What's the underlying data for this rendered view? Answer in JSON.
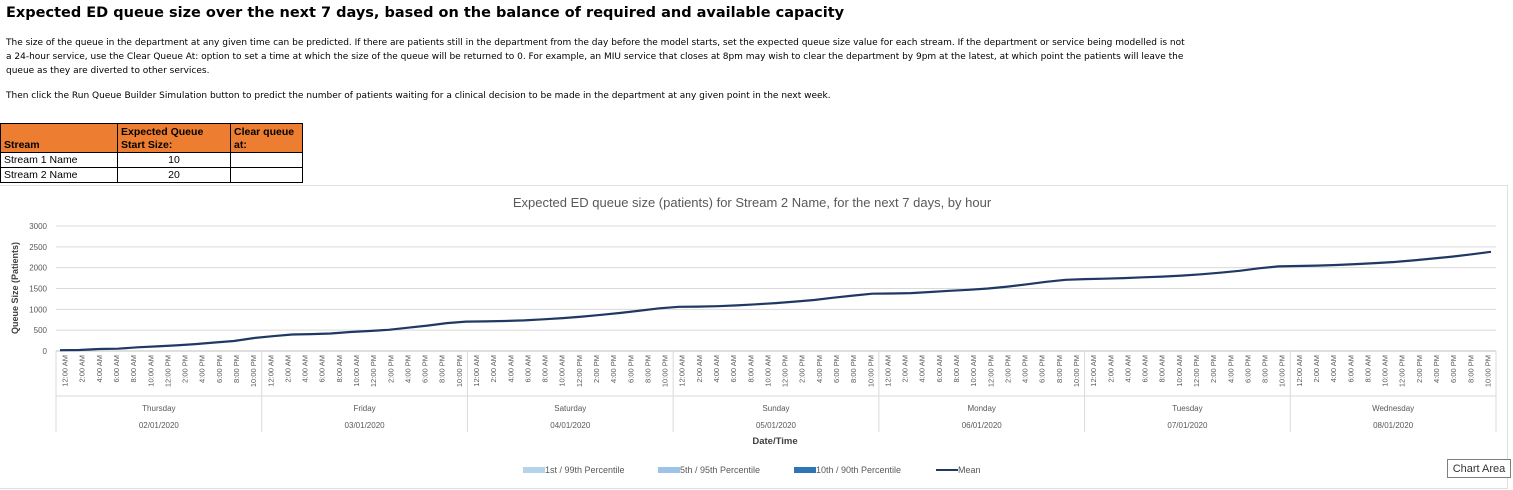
{
  "page": {
    "title": "Expected ED queue size over the next 7 days, based on the balance of required and available capacity",
    "description": "The size of the queue in the department at any given time can be predicted. If there are patients still in the department from the day before the model starts, set the expected queue size value for each stream. If the department or service being modelled is not a 24-hour service, use the Clear Queue At: option to set a time at which the size of the queue will be returned to 0. For example, an MIU service that closes at 8pm may wish to clear the department by 9pm at the latest, at which point the patients will leave the queue as they are diverted to other services.",
    "instruction": "Then click the Run Queue Builder Simulation button to predict the number of patients waiting for a clinical decision to be made in the department at any given point in the next week."
  },
  "table": {
    "headers": [
      "Stream",
      "Expected Queue Start Size:",
      "Clear queue at:"
    ],
    "rows": [
      {
        "stream": "Stream 1 Name",
        "start": "10",
        "clear": ""
      },
      {
        "stream": "Stream 2 Name",
        "start": "20",
        "clear": ""
      }
    ],
    "header_color": "#ed7d31"
  },
  "chart_data": {
    "type": "line",
    "title": "Expected ED queue size (patients) for Stream 2 Name, for the next 7 days, by hour",
    "xlabel": "Date/Time",
    "ylabel": "Queue Size (Patients)",
    "ylim": [
      0,
      3000
    ],
    "yticks": [
      0,
      500,
      1000,
      1500,
      2000,
      2500,
      3000
    ],
    "grid": true,
    "legend_position": "bottom",
    "hour_ticks": [
      "12:00 AM",
      "2:00 AM",
      "4:00 AM",
      "6:00 AM",
      "8:00 AM",
      "10:00 AM",
      "12:00 PM",
      "2:00 PM",
      "4:00 PM",
      "6:00 PM",
      "8:00 PM",
      "10:00 PM"
    ],
    "days": [
      {
        "name": "Thursday",
        "date": "02/01/2020"
      },
      {
        "name": "Friday",
        "date": "03/01/2020"
      },
      {
        "name": "Saturday",
        "date": "04/01/2020"
      },
      {
        "name": "Sunday",
        "date": "05/01/2020"
      },
      {
        "name": "Monday",
        "date": "06/01/2020"
      },
      {
        "name": "Tuesday",
        "date": "07/01/2020"
      },
      {
        "name": "Wednesday",
        "date": "08/01/2020"
      }
    ],
    "series": [
      {
        "name": "1st / 99th Percentile",
        "color": "#b4d4ec",
        "kind": "band"
      },
      {
        "name": "5th / 95th Percentile",
        "color": "#9dc3e6",
        "kind": "band"
      },
      {
        "name": "10th / 90th Percentile",
        "color": "#2e75b6",
        "kind": "band"
      },
      {
        "name": "Mean",
        "color": "#203864",
        "kind": "line",
        "values": [
          20,
          23,
          47,
          55,
          90,
          110,
          135,
          165,
          205,
          240,
          310,
          355,
          395,
          405,
          420,
          455,
          480,
          510,
          560,
          610,
          670,
          705,
          710,
          720,
          735,
          760,
          790,
          825,
          870,
          915,
          970,
          1025,
          1060,
          1065,
          1075,
          1095,
          1120,
          1150,
          1185,
          1225,
          1280,
          1330,
          1375,
          1380,
          1390,
          1415,
          1445,
          1470,
          1500,
          1545,
          1600,
          1660,
          1710,
          1725,
          1735,
          1750,
          1770,
          1785,
          1810,
          1840,
          1880,
          1925,
          1985,
          2030,
          2040,
          2050,
          2065,
          2085,
          2110,
          2135,
          2175,
          2220,
          2265,
          2320,
          2380
        ]
      }
    ]
  },
  "tooltip": {
    "label": "Chart Area"
  }
}
